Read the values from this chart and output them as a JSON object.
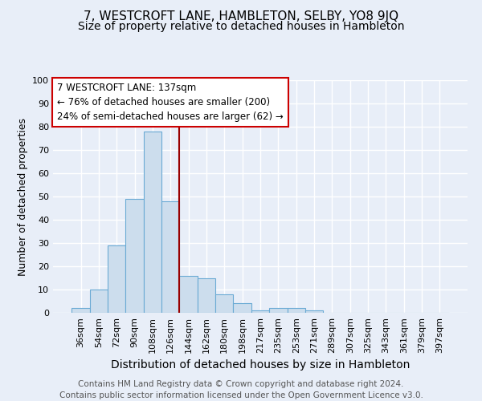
{
  "title": "7, WESTCROFT LANE, HAMBLETON, SELBY, YO8 9JQ",
  "subtitle": "Size of property relative to detached houses in Hambleton",
  "xlabel": "Distribution of detached houses by size in Hambleton",
  "ylabel": "Number of detached properties",
  "bar_labels": [
    "36sqm",
    "54sqm",
    "72sqm",
    "90sqm",
    "108sqm",
    "126sqm",
    "144sqm",
    "162sqm",
    "180sqm",
    "198sqm",
    "217sqm",
    "235sqm",
    "253sqm",
    "271sqm",
    "289sqm",
    "307sqm",
    "325sqm",
    "343sqm",
    "361sqm",
    "379sqm",
    "397sqm"
  ],
  "bar_values": [
    2,
    10,
    29,
    49,
    78,
    48,
    16,
    15,
    8,
    4,
    1,
    2,
    2,
    1,
    0,
    0,
    0,
    0,
    0,
    0,
    0
  ],
  "bar_color": "#ccdded",
  "bar_edge_color": "#6aaad4",
  "background_color": "#e8eef8",
  "grid_color": "#ffffff",
  "property_line_color": "#990000",
  "annotation_text": "7 WESTCROFT LANE: 137sqm\n← 76% of detached houses are smaller (200)\n24% of semi-detached houses are larger (62) →",
  "annotation_box_color": "#ffffff",
  "annotation_box_edge": "#cc0000",
  "footer_line1": "Contains HM Land Registry data © Crown copyright and database right 2024.",
  "footer_line2": "Contains public sector information licensed under the Open Government Licence v3.0.",
  "ylim": [
    0,
    100
  ],
  "title_fontsize": 11,
  "subtitle_fontsize": 10,
  "xlabel_fontsize": 10,
  "ylabel_fontsize": 9,
  "tick_fontsize": 8,
  "footer_fontsize": 7.5,
  "annotation_fontsize": 8.5
}
